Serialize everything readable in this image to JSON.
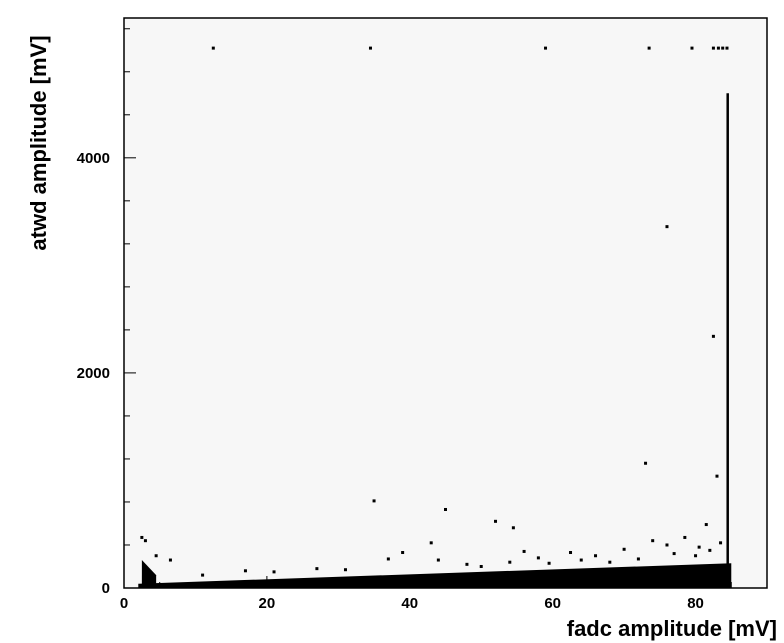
{
  "chart_data": {
    "type": "scatter",
    "xlabel": "fadc amplitude [mV]",
    "ylabel": "atwd amplitude [mV]",
    "xlim": [
      0,
      90
    ],
    "ylim": [
      0,
      5300
    ],
    "x_ticks": [
      0,
      20,
      40,
      60,
      80
    ],
    "y_ticks": [
      0,
      2000,
      4000
    ],
    "x_tick_labels": [
      "0",
      "20",
      "40",
      "60",
      "80"
    ],
    "y_tick_labels": [
      "0",
      "2000",
      "4000"
    ],
    "grid": false,
    "frame_color": "#000000",
    "marker_color": "#000000",
    "background_color": "#f7f7f7",
    "bands": [
      {
        "x_range": [
          2,
          85
        ],
        "y_low": 0,
        "y_high_start": 40,
        "y_high_end": 230
      },
      {
        "x_range": [
          2.5,
          4.5
        ],
        "y_low": 0,
        "y_high_start": 260,
        "y_high_end": 120
      }
    ],
    "vertical_spike": {
      "x": 84.5,
      "y_range": [
        0,
        4600
      ]
    },
    "points": [
      [
        12.5,
        5020
      ],
      [
        34.5,
        5020
      ],
      [
        59,
        5020
      ],
      [
        73.5,
        5020
      ],
      [
        79.5,
        5020
      ],
      [
        82.5,
        5020
      ],
      [
        83.2,
        5020
      ],
      [
        83.8,
        5020
      ],
      [
        84.4,
        5020
      ],
      [
        76,
        3360
      ],
      [
        82.5,
        2340
      ],
      [
        73,
        1160
      ],
      [
        83,
        1040
      ],
      [
        35,
        810
      ],
      [
        45,
        730
      ],
      [
        52,
        620
      ],
      [
        54.5,
        560
      ],
      [
        81.5,
        590
      ],
      [
        2.5,
        470
      ],
      [
        3,
        440
      ],
      [
        4.5,
        300
      ],
      [
        6.5,
        260
      ],
      [
        39,
        330
      ],
      [
        43,
        420
      ],
      [
        37,
        270
      ],
      [
        56,
        340
      ],
      [
        58,
        280
      ],
      [
        62.5,
        330
      ],
      [
        66,
        300
      ],
      [
        70,
        360
      ],
      [
        74,
        440
      ],
      [
        76,
        400
      ],
      [
        78.5,
        470
      ],
      [
        80,
        300
      ],
      [
        82,
        350
      ],
      [
        83.5,
        420
      ],
      [
        11,
        120
      ],
      [
        17,
        160
      ],
      [
        21,
        150
      ],
      [
        27,
        180
      ],
      [
        31,
        170
      ],
      [
        48,
        220
      ],
      [
        64,
        260
      ],
      [
        68,
        240
      ],
      [
        72,
        270
      ],
      [
        59.5,
        230
      ],
      [
        44,
        260
      ],
      [
        50,
        200
      ],
      [
        54,
        240
      ],
      [
        80.5,
        380
      ],
      [
        77,
        320
      ]
    ]
  }
}
